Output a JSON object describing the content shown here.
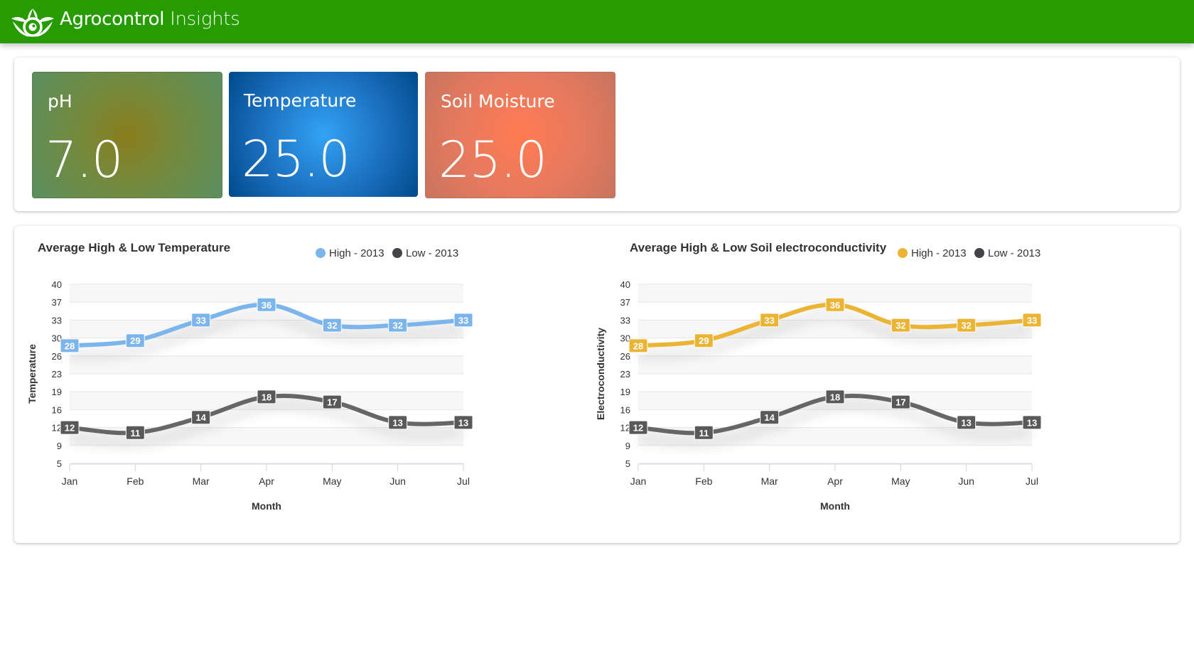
{
  "header": {
    "logo_icon": "leaf-eye-logo-icon",
    "brand_primary": "Agrocontrol",
    "brand_secondary": "Insights",
    "color": "#279c00"
  },
  "summary_cards": [
    {
      "label": "pH",
      "value": "7.0"
    },
    {
      "label": "Temperature",
      "value": "25.0"
    },
    {
      "label": "Soil Moisture",
      "value": "25.0"
    }
  ],
  "chart_data": [
    {
      "type": "line",
      "title": "Average High & Low Temperature",
      "xlabel": "Month",
      "ylabel": "Temperature",
      "categories": [
        "Jan",
        "Feb",
        "Mar",
        "Apr",
        "May",
        "Jun",
        "Jul"
      ],
      "ylim": [
        5,
        40
      ],
      "yticks": [
        "40",
        "37",
        "33",
        "30",
        "26",
        "23",
        "19",
        "16",
        "12",
        "9",
        "5"
      ],
      "grid": true,
      "legend": "top-right",
      "series": [
        {
          "name": "High - 2013",
          "color": "#7cb5ec",
          "values": [
            28,
            29,
            33,
            36,
            32,
            32,
            33
          ]
        },
        {
          "name": "Low - 2013",
          "color": "#666666",
          "values": [
            12,
            11,
            14,
            18,
            17,
            13,
            13
          ]
        }
      ]
    },
    {
      "type": "line",
      "title": "Average High & Low Soil electroconductivity",
      "xlabel": "Month",
      "ylabel": "Electroconductivity",
      "categories": [
        "Jan",
        "Feb",
        "Mar",
        "Apr",
        "May",
        "Jun",
        "Jul"
      ],
      "ylim": [
        5,
        40
      ],
      "yticks": [
        "40",
        "37",
        "33",
        "30",
        "26",
        "23",
        "19",
        "16",
        "12",
        "9",
        "5"
      ],
      "grid": true,
      "legend": "top-right",
      "series": [
        {
          "name": "High - 2013",
          "color": "#ecb435",
          "values": [
            28,
            29,
            33,
            36,
            32,
            32,
            33
          ]
        },
        {
          "name": "Low - 2013",
          "color": "#666666",
          "values": [
            12,
            11,
            14,
            18,
            17,
            13,
            13
          ]
        }
      ]
    }
  ]
}
